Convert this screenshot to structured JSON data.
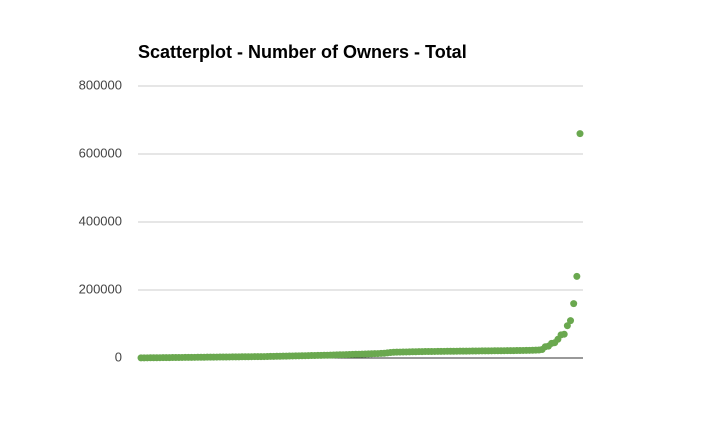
{
  "chart_data": {
    "type": "scatter",
    "title": "Scatterplot - Number of Owners - Total",
    "color": "#6aa84f",
    "ylim": [
      0,
      800000
    ],
    "yticks": [
      0,
      200000,
      400000,
      600000,
      800000
    ],
    "grid": true,
    "values": [
      300,
      400,
      500,
      600,
      700,
      800,
      900,
      1000,
      1100,
      1200,
      1300,
      1400,
      1500,
      1600,
      1700,
      1800,
      1900,
      2000,
      2100,
      2200,
      2300,
      2400,
      2500,
      2600,
      2700,
      2800,
      2900,
      3000,
      3100,
      3200,
      3300,
      3400,
      3500,
      3600,
      3700,
      3800,
      3900,
      4000,
      4100,
      4200,
      4400,
      4600,
      4800,
      5000,
      5200,
      5400,
      5600,
      5800,
      6000,
      6200,
      6400,
      6600,
      6800,
      7000,
      7200,
      7400,
      7600,
      7800,
      8000,
      8200,
      8500,
      8800,
      9100,
      9400,
      9700,
      10000,
      10300,
      10600,
      10900,
      11200,
      11500,
      11800,
      12100,
      12400,
      12700,
      13000,
      13500,
      14000,
      15000,
      16000,
      17000,
      17200,
      17400,
      17600,
      17800,
      18000,
      18200,
      18400,
      18600,
      18800,
      19000,
      19100,
      19200,
      19300,
      19400,
      19500,
      19600,
      19700,
      19800,
      19900,
      20000,
      20100,
      20200,
      20300,
      20400,
      20500,
      20600,
      20700,
      20800,
      20900,
      21000,
      21100,
      21200,
      21300,
      21400,
      21500,
      21600,
      21700,
      21800,
      21900,
      22000,
      22200,
      22400,
      22600,
      22800,
      23000,
      23500,
      25000,
      33000,
      35000,
      43000,
      45000,
      55000,
      68000,
      70000,
      95000,
      110000,
      160000,
      240000,
      660000
    ]
  }
}
